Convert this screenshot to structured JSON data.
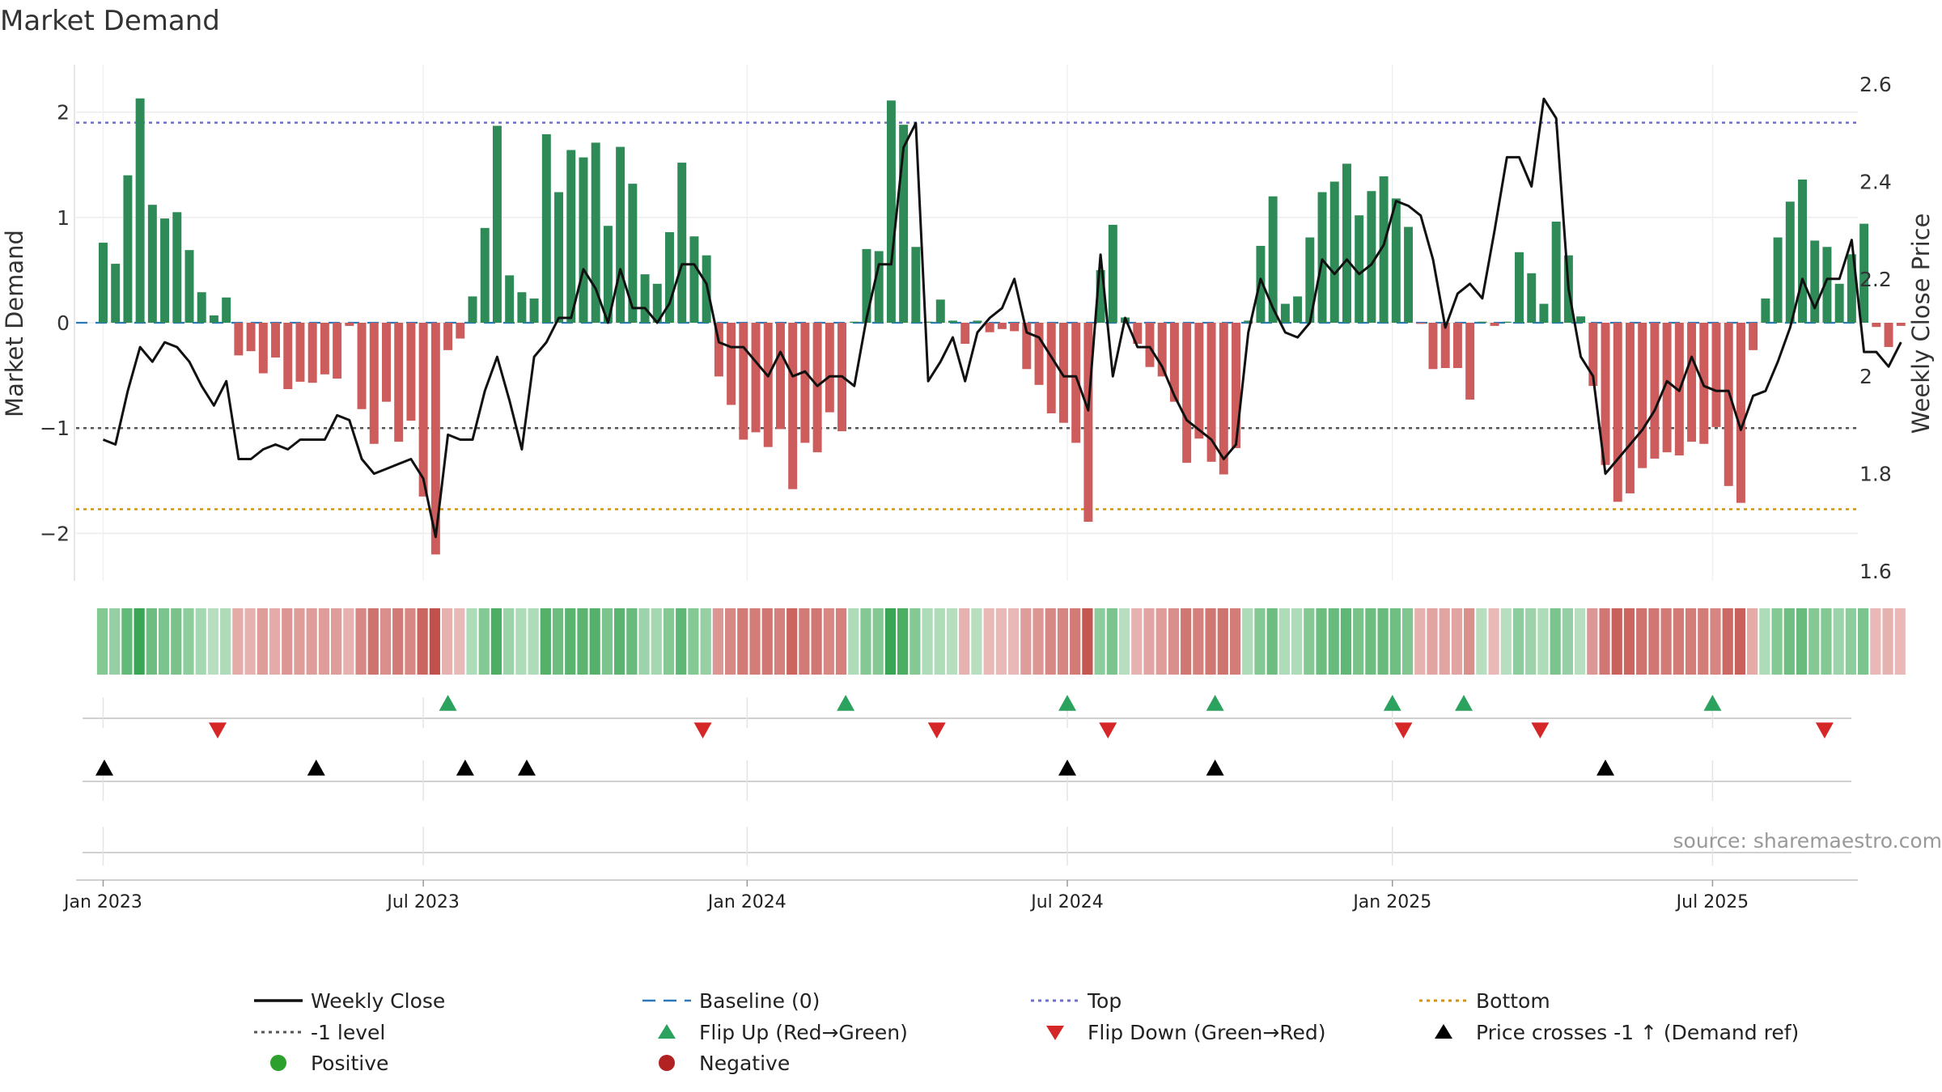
{
  "title": "Market Demand",
  "chart_data": {
    "type": "bar",
    "title": "Market Demand",
    "ylabel_left": "Market Demand",
    "ylabel_right": "Weekly Close Price",
    "ylim_left": [
      -2.45,
      2.45
    ],
    "ylim_right": [
      1.58,
      2.64
    ],
    "yticks_left": [
      {
        "v": 2,
        "label": "2"
      },
      {
        "v": 1,
        "label": "1"
      },
      {
        "v": 0,
        "label": "0"
      },
      {
        "v": -1,
        "label": "−1"
      },
      {
        "v": -2,
        "label": "−2"
      }
    ],
    "yticks_right": [
      {
        "v": 2.6,
        "label": "2.6"
      },
      {
        "v": 2.4,
        "label": "2.4"
      },
      {
        "v": 2.2,
        "label": "2.2"
      },
      {
        "v": 2.0,
        "label": "2"
      },
      {
        "v": 1.8,
        "label": "1.8"
      },
      {
        "v": 1.6,
        "label": "1.6"
      }
    ],
    "xticks": [
      {
        "week": 0,
        "label": "Jan 2023"
      },
      {
        "week": 26,
        "label": "Jul 2023"
      },
      {
        "week": 52.3,
        "label": "Jan 2024"
      },
      {
        "week": 78.3,
        "label": "Jul 2024"
      },
      {
        "week": 104.7,
        "label": "Jan 2025"
      },
      {
        "week": 130.7,
        "label": "Jul 2025"
      }
    ],
    "week_start": -2.2,
    "week_end": 142.5,
    "reference_lines": [
      {
        "name": "Top",
        "value": 1.9,
        "color": "#6f6fcf"
      },
      {
        "name": "-1 level",
        "value": -1,
        "color": "#555555"
      },
      {
        "name": "Bottom",
        "value": -1.77,
        "color": "#d4930f"
      },
      {
        "name": "Baseline (0)",
        "value": 0,
        "color": "#2a78b8"
      }
    ],
    "demand": [
      0.76,
      0.56,
      1.4,
      2.13,
      1.12,
      0.99,
      1.05,
      0.69,
      0.29,
      0.07,
      0.24,
      -0.31,
      -0.27,
      -0.48,
      -0.33,
      -0.63,
      -0.56,
      -0.57,
      -0.49,
      -0.53,
      -0.03,
      -0.82,
      -1.15,
      -0.75,
      -1.13,
      -0.93,
      -1.65,
      -2.2,
      -0.26,
      -0.15,
      0.25,
      0.9,
      1.87,
      0.45,
      0.29,
      0.23,
      1.79,
      1.24,
      1.64,
      1.57,
      1.71,
      0.92,
      1.67,
      1.32,
      0.46,
      0.37,
      0.86,
      1.52,
      0.82,
      0.64,
      -0.51,
      -0.78,
      -1.11,
      -1.04,
      -1.18,
      -1.01,
      -1.58,
      -1.14,
      -1.23,
      -0.85,
      -1.03,
      0.01,
      0.7,
      0.68,
      2.11,
      1.88,
      0.72,
      0.01,
      0.22,
      0.02,
      -0.2,
      0.02,
      -0.09,
      -0.06,
      -0.08,
      -0.44,
      -0.59,
      -0.86,
      -0.95,
      -1.14,
      -1.89,
      0.5,
      0.93,
      0.05,
      -0.2,
      -0.42,
      -0.51,
      -0.75,
      -1.33,
      -1.1,
      -1.32,
      -1.44,
      -1.19,
      0.02,
      0.73,
      1.2,
      0.18,
      0.25,
      0.81,
      1.24,
      1.34,
      1.51,
      1.02,
      1.25,
      1.39,
      1.18,
      0.91,
      -0.01,
      -0.44,
      -0.43,
      -0.43,
      -0.73,
      0.01,
      -0.03,
      0.01,
      0.67,
      0.47,
      0.18,
      0.96,
      0.64,
      0.06,
      -0.6,
      -1.35,
      -1.7,
      -1.62,
      -1.38,
      -1.29,
      -1.23,
      -1.26,
      -1.13,
      -1.15,
      -0.99,
      -1.55,
      -1.71,
      -0.26,
      0.23,
      0.81,
      1.15,
      1.36,
      0.78,
      0.72,
      0.37,
      0.65,
      0.94,
      -0.04,
      -0.23,
      -0.03
    ],
    "price": [
      1.87,
      1.86,
      1.97,
      2.06,
      2.03,
      2.07,
      2.06,
      2.03,
      1.98,
      1.94,
      1.99,
      1.83,
      1.83,
      1.85,
      1.86,
      1.85,
      1.87,
      1.87,
      1.87,
      1.92,
      1.91,
      1.83,
      1.8,
      1.81,
      1.82,
      1.83,
      1.79,
      1.67,
      1.88,
      1.87,
      1.87,
      1.97,
      2.04,
      1.95,
      1.85,
      2.04,
      2.07,
      2.12,
      2.12,
      2.22,
      2.18,
      2.11,
      2.22,
      2.14,
      2.14,
      2.11,
      2.15,
      2.23,
      2.23,
      2.19,
      2.07,
      2.06,
      2.06,
      2.03,
      2.0,
      2.05,
      2.0,
      2.01,
      1.98,
      2.0,
      2.0,
      1.98,
      2.12,
      2.23,
      2.23,
      2.47,
      2.52,
      1.99,
      2.03,
      2.08,
      1.99,
      2.09,
      2.12,
      2.14,
      2.2,
      2.09,
      2.08,
      2.04,
      2.0,
      2.0,
      1.93,
      2.25,
      2.0,
      2.12,
      2.06,
      2.06,
      2.02,
      1.96,
      1.91,
      1.89,
      1.87,
      1.83,
      1.86,
      2.09,
      2.2,
      2.14,
      2.09,
      2.08,
      2.11,
      2.24,
      2.21,
      2.24,
      2.21,
      2.23,
      2.27,
      2.36,
      2.35,
      2.33,
      2.24,
      2.1,
      2.17,
      2.19,
      2.16,
      2.3,
      2.45,
      2.45,
      2.39,
      2.57,
      2.53,
      2.18,
      2.04,
      2.0,
      1.8,
      1.83,
      1.86,
      1.89,
      1.93,
      1.99,
      1.97,
      2.04,
      1.98,
      1.97,
      1.97,
      1.89,
      1.96,
      1.97,
      2.03,
      2.1,
      2.2,
      2.14,
      2.2,
      2.2,
      2.28,
      2.05,
      2.05,
      2.02,
      2.07
    ],
    "strip_intensity": [
      0.55,
      0.45,
      0.75,
      1.0,
      0.7,
      0.6,
      0.62,
      0.5,
      0.35,
      0.25,
      0.3,
      0.35,
      0.3,
      0.45,
      0.35,
      0.5,
      0.45,
      0.45,
      0.45,
      0.45,
      0.3,
      0.6,
      0.75,
      0.55,
      0.7,
      0.6,
      0.85,
      1.0,
      0.3,
      0.25,
      0.3,
      0.55,
      0.9,
      0.4,
      0.3,
      0.3,
      0.85,
      0.7,
      0.82,
      0.8,
      0.85,
      0.6,
      0.82,
      0.72,
      0.4,
      0.35,
      0.55,
      0.78,
      0.55,
      0.45,
      0.5,
      0.6,
      0.7,
      0.68,
      0.72,
      0.65,
      0.85,
      0.7,
      0.72,
      0.6,
      0.65,
      0.3,
      0.55,
      0.55,
      1.0,
      0.9,
      0.55,
      0.3,
      0.3,
      0.25,
      0.3,
      0.25,
      0.25,
      0.25,
      0.25,
      0.45,
      0.5,
      0.6,
      0.62,
      0.7,
      0.95,
      0.5,
      0.6,
      0.25,
      0.3,
      0.4,
      0.45,
      0.55,
      0.72,
      0.65,
      0.72,
      0.75,
      0.68,
      0.3,
      0.55,
      0.7,
      0.3,
      0.3,
      0.55,
      0.7,
      0.72,
      0.78,
      0.62,
      0.7,
      0.72,
      0.68,
      0.58,
      0.3,
      0.4,
      0.4,
      0.4,
      0.55,
      0.25,
      0.25,
      0.25,
      0.5,
      0.4,
      0.3,
      0.6,
      0.45,
      0.25,
      0.5,
      0.72,
      0.88,
      0.85,
      0.75,
      0.72,
      0.7,
      0.7,
      0.68,
      0.68,
      0.62,
      0.82,
      0.88,
      0.35,
      0.3,
      0.55,
      0.68,
      0.72,
      0.55,
      0.55,
      0.4,
      0.5,
      0.6,
      0.25,
      0.3,
      0.25
    ],
    "events": {
      "flip_up_weeks": [
        28,
        60.3,
        78.3,
        90.3,
        104.7,
        110.5,
        130.7
      ],
      "flip_down_weeks": [
        9.3,
        48.7,
        67.7,
        81.6,
        105.6,
        116.7,
        139.8
      ],
      "price_cross_weeks": [
        0.1,
        17.3,
        29.4,
        34.4,
        78.3,
        90.3,
        122
      ]
    },
    "annotation": "source: sharemaestro.com",
    "legend": {
      "placement": "bottom",
      "items": [
        {
          "label": "Weekly Close",
          "marker": "line",
          "color": "#111111"
        },
        {
          "label": "Baseline (0)",
          "marker": "dash",
          "color": "#2a78b8"
        },
        {
          "label": "Top",
          "marker": "dot",
          "color": "#6f6fcf"
        },
        {
          "label": "Bottom",
          "marker": "dot",
          "color": "#d4930f"
        },
        {
          "label": "-1 level",
          "marker": "dot",
          "color": "#555555"
        },
        {
          "label": "Flip Up (Red→Green)",
          "marker": "tri-up",
          "color": "#2ca25f"
        },
        {
          "label": "Flip Down (Green→Red)",
          "marker": "tri-down",
          "color": "#d62728"
        },
        {
          "label": "Price crosses -1 ↑ (Demand ref)",
          "marker": "tri-up",
          "color": "#000000"
        },
        {
          "label": "Positive",
          "marker": "circle",
          "color": "#2ca02c"
        },
        {
          "label": "Negative",
          "marker": "circle",
          "color": "#b22222"
        }
      ]
    },
    "colors": {
      "positive_bar": "#2e8b57",
      "negative_bar": "#cd5c5c",
      "price_line": "#111111"
    }
  }
}
